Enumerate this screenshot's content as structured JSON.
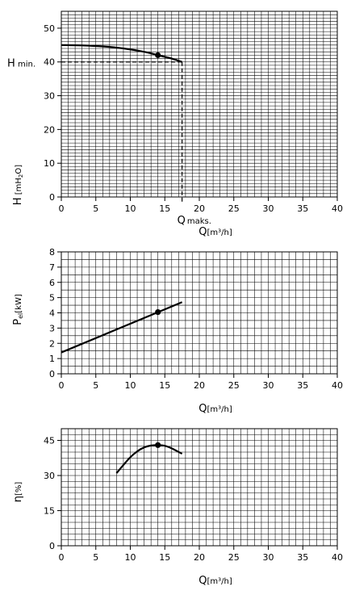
{
  "chart_data": [
    {
      "type": "line",
      "xlabel": {
        "main": "Q",
        "unit": "[m³/h]"
      },
      "ylabel": {
        "main": "H",
        "unit_pre": " [mH",
        "unit_sub": "2",
        "unit_post": "O]"
      },
      "xlim": [
        0,
        40
      ],
      "ylim": [
        0,
        55
      ],
      "x_ticks": [
        "0",
        "5",
        "10",
        "15",
        "20",
        "25",
        "30",
        "35",
        "40"
      ],
      "y_ticks": [
        "0",
        "10",
        "20",
        "30",
        "40",
        "50"
      ],
      "y_tick_values": [
        0,
        10,
        20,
        30,
        40,
        50
      ],
      "grid": true,
      "series": [
        {
          "x": [
            0,
            3,
            6,
            9,
            12,
            14,
            16,
            17.5
          ],
          "y": [
            45,
            44.9,
            44.6,
            44,
            43,
            42,
            41,
            40
          ]
        }
      ],
      "marker": {
        "x": 14,
        "y": 42
      },
      "reference_lines": {
        "x": 17.5,
        "y": 40
      },
      "annotations": {
        "h_min": {
          "main": "H",
          "sub": " min."
        },
        "q_max": {
          "main": "Q",
          "sub": "maks."
        }
      }
    },
    {
      "type": "line",
      "xlabel": {
        "main": "Q",
        "unit": "[m³/h]"
      },
      "ylabel": {
        "main": "P",
        "sub": "el",
        "unit": "[kW]"
      },
      "xlim": [
        0,
        40
      ],
      "ylim": [
        0,
        8
      ],
      "x_ticks": [
        "0",
        "5",
        "10",
        "15",
        "20",
        "25",
        "30",
        "35",
        "40"
      ],
      "y_ticks": [
        "0",
        "1",
        "2",
        "3",
        "4",
        "5",
        "6",
        "7",
        "8"
      ],
      "y_tick_values": [
        0,
        1,
        2,
        3,
        4,
        5,
        6,
        7,
        8
      ],
      "grid": true,
      "series": [
        {
          "x": [
            0,
            17.5
          ],
          "y": [
            1.4,
            4.7
          ]
        }
      ],
      "marker": {
        "x": 14,
        "y": 4.05
      }
    },
    {
      "type": "line",
      "xlabel": {
        "main": "Q",
        "unit": "[m³/h]"
      },
      "ylabel": {
        "main": "η",
        "unit": "[%]"
      },
      "xlim": [
        0,
        40
      ],
      "ylim": [
        0,
        50
      ],
      "x_ticks": [
        "0",
        "5",
        "10",
        "15",
        "20",
        "25",
        "30",
        "35",
        "40"
      ],
      "y_ticks": [
        "0",
        "15",
        "30",
        "45"
      ],
      "y_tick_values": [
        0,
        15,
        30,
        45
      ],
      "grid": true,
      "series": [
        {
          "x": [
            8,
            9,
            10,
            11,
            12,
            13,
            14,
            15,
            16,
            17.5
          ],
          "y": [
            31,
            34.5,
            37.8,
            40.3,
            42,
            42.8,
            43,
            42.7,
            41.6,
            39.3
          ]
        }
      ],
      "marker": {
        "x": 14,
        "y": 43
      }
    }
  ]
}
